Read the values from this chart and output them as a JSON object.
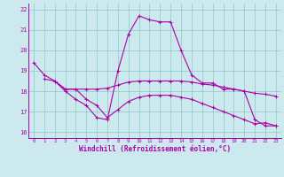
{
  "xlabel": "Windchill (Refroidissement éolien,°C)",
  "xlim": [
    -0.5,
    23.5
  ],
  "ylim": [
    15.7,
    22.3
  ],
  "yticks": [
    16,
    17,
    18,
    19,
    20,
    21,
    22
  ],
  "xticks": [
    0,
    1,
    2,
    3,
    4,
    5,
    6,
    7,
    8,
    9,
    10,
    11,
    12,
    13,
    14,
    15,
    16,
    17,
    18,
    19,
    20,
    21,
    22,
    23
  ],
  "bg_color": "#cce9ee",
  "line_color": "#aa00aa",
  "grid_color": "#99cccc",
  "line1_x": [
    0,
    1,
    2,
    3,
    4,
    5,
    6,
    7,
    8,
    9,
    10,
    11,
    12,
    13,
    14,
    15,
    16,
    17,
    18,
    19,
    20,
    21,
    22,
    23
  ],
  "line1_y": [
    19.4,
    18.8,
    18.5,
    18.0,
    17.6,
    17.3,
    16.7,
    16.6,
    19.0,
    20.8,
    21.7,
    21.5,
    21.4,
    21.4,
    20.0,
    18.8,
    18.4,
    18.4,
    18.1,
    18.1,
    18.0,
    16.6,
    16.3,
    16.3
  ],
  "line2_x": [
    1,
    2,
    3,
    4,
    5,
    6,
    7,
    8,
    9,
    10,
    11,
    12,
    13,
    14,
    15,
    16,
    17,
    18,
    19,
    20,
    21,
    22,
    23
  ],
  "line2_y": [
    18.6,
    18.5,
    18.1,
    18.1,
    18.1,
    18.1,
    18.15,
    18.3,
    18.45,
    18.5,
    18.5,
    18.5,
    18.5,
    18.5,
    18.45,
    18.35,
    18.3,
    18.2,
    18.1,
    18.0,
    17.9,
    17.85,
    17.75
  ],
  "line3_x": [
    2,
    3,
    4,
    5,
    6,
    7,
    8,
    9,
    10,
    11,
    12,
    13,
    14,
    15,
    16,
    17,
    18,
    19,
    20,
    21,
    22,
    23
  ],
  "line3_y": [
    18.5,
    18.1,
    18.1,
    17.6,
    17.3,
    16.7,
    17.1,
    17.5,
    17.7,
    17.8,
    17.8,
    17.8,
    17.7,
    17.6,
    17.4,
    17.2,
    17.0,
    16.8,
    16.6,
    16.4,
    16.45,
    16.3
  ]
}
